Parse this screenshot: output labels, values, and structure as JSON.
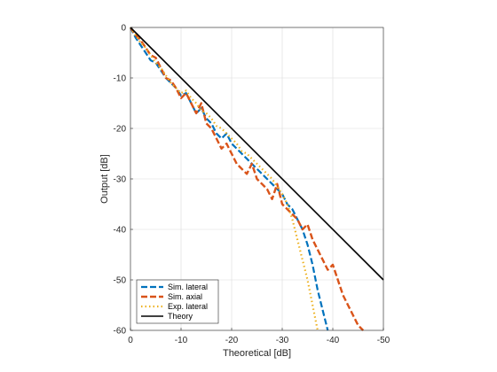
{
  "chart_data": {
    "type": "line",
    "title": "",
    "xlabel": "Theoretical [dB]",
    "ylabel": "Output [dB]",
    "xlim": [
      0,
      -50
    ],
    "ylim": [
      -60,
      0
    ],
    "x_ticks": [
      0,
      -10,
      -20,
      -30,
      -40,
      -50
    ],
    "x_tick_labels": [
      "0",
      "-10",
      "-20",
      "-30",
      "-40",
      "-50"
    ],
    "y_ticks": [
      0,
      -10,
      -20,
      -30,
      -40,
      -50,
      -60
    ],
    "y_tick_labels": [
      "0",
      "-10",
      "-20",
      "-30",
      "-40",
      "-50",
      "-60"
    ],
    "grid": true,
    "legend_position": "bottom-left",
    "series": [
      {
        "name": "Sim. lateral",
        "color": "#0072BD",
        "style": "dashed",
        "x": [
          0,
          -1,
          -2,
          -3,
          -4,
          -5,
          -6,
          -7,
          -8,
          -9,
          -10,
          -11,
          -12,
          -13,
          -14,
          -15,
          -16,
          -17,
          -18,
          -19,
          -20,
          -21,
          -22,
          -23,
          -24,
          -25,
          -26,
          -27,
          -28,
          -29,
          -30,
          -31,
          -32,
          -33,
          -34,
          -35,
          -36,
          -37,
          -38,
          -39
        ],
        "y": [
          0,
          -2,
          -3.5,
          -5,
          -6.5,
          -7,
          -8.5,
          -10,
          -11,
          -12,
          -13.5,
          -13,
          -15,
          -17,
          -16,
          -18,
          -19,
          -21,
          -22,
          -21,
          -23,
          -24,
          -25,
          -26,
          -27,
          -28,
          -29,
          -30,
          -31,
          -32,
          -33,
          -35,
          -36,
          -38,
          -40,
          -43,
          -47,
          -52,
          -56,
          -60
        ]
      },
      {
        "name": "Sim. axial",
        "color": "#D95319",
        "style": "dashed",
        "x": [
          0,
          -1,
          -2,
          -3,
          -4,
          -5,
          -6,
          -7,
          -8,
          -9,
          -10,
          -11,
          -12,
          -13,
          -14,
          -15,
          -16,
          -17,
          -18,
          -19,
          -20,
          -21,
          -22,
          -23,
          -24,
          -25,
          -26,
          -27,
          -28,
          -29,
          -30,
          -31,
          -32,
          -33,
          -34,
          -35,
          -36,
          -37,
          -38,
          -39,
          -40,
          -41,
          -42,
          -43,
          -44,
          -45,
          -46
        ],
        "y": [
          0,
          -1.5,
          -2.5,
          -4,
          -5.5,
          -6,
          -8,
          -10,
          -10.5,
          -12,
          -14,
          -13,
          -15,
          -17,
          -15,
          -19,
          -20,
          -22,
          -24,
          -23,
          -25,
          -27,
          -28,
          -29,
          -27,
          -30,
          -31,
          -32,
          -34,
          -31,
          -35,
          -36,
          -37,
          -38,
          -40,
          -39,
          -42,
          -44,
          -46,
          -48,
          -47,
          -50,
          -53,
          -55,
          -57,
          -59,
          -60
        ]
      },
      {
        "name": "Exp. lateral",
        "color": "#EDB120",
        "style": "dotted",
        "x": [
          0,
          -1,
          -2,
          -3,
          -4,
          -5,
          -6,
          -7,
          -8,
          -9,
          -10,
          -11,
          -12,
          -13,
          -14,
          -15,
          -16,
          -17,
          -18,
          -19,
          -20,
          -21,
          -22,
          -23,
          -24,
          -25,
          -26,
          -27,
          -28,
          -29,
          -30,
          -31,
          -32,
          -33,
          -34,
          -35,
          -36,
          -37
        ],
        "y": [
          0,
          -1.5,
          -3,
          -4,
          -5.5,
          -7,
          -8,
          -9.5,
          -11,
          -12,
          -13,
          -12.5,
          -14,
          -15,
          -16.5,
          -17,
          -18,
          -19.5,
          -20,
          -21,
          -22,
          -23,
          -24.5,
          -25,
          -26,
          -27,
          -28,
          -29,
          -30,
          -31.5,
          -33,
          -35,
          -38,
          -42,
          -46,
          -50,
          -55,
          -60
        ]
      },
      {
        "name": "Theory",
        "color": "#000000",
        "style": "solid",
        "x": [
          0,
          -50
        ],
        "y": [
          0,
          -50
        ]
      }
    ]
  }
}
